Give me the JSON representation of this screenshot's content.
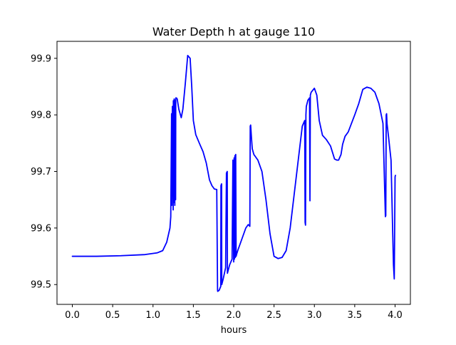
{
  "chart_data": {
    "type": "line",
    "title": "Water Depth h at gauge 110",
    "xlabel": "hours",
    "ylabel": "",
    "xlim": [
      -0.19,
      4.19
    ],
    "ylim": [
      99.465,
      99.93
    ],
    "x_ticks": [
      0.0,
      0.5,
      1.0,
      1.5,
      2.0,
      2.5,
      3.0,
      3.5,
      4.0
    ],
    "x_tick_labels": [
      "0.0",
      "0.5",
      "1.0",
      "1.5",
      "2.0",
      "2.5",
      "3.0",
      "3.5",
      "4.0"
    ],
    "y_ticks": [
      99.5,
      99.6,
      99.7,
      99.8,
      99.9
    ],
    "y_tick_labels": [
      "99.5",
      "99.6",
      "99.7",
      "99.8",
      "99.9"
    ],
    "grid": false,
    "legend": "none",
    "series": [
      {
        "color": "#0000ff",
        "x": [
          0.0,
          0.3,
          0.6,
          0.9,
          1.05,
          1.12,
          1.17,
          1.21,
          1.22,
          1.23,
          1.232,
          1.24,
          1.25,
          1.252,
          1.26,
          1.262,
          1.27,
          1.272,
          1.28,
          1.282,
          1.29,
          1.3,
          1.32,
          1.35,
          1.37,
          1.4,
          1.43,
          1.46,
          1.48,
          1.5,
          1.53,
          1.58,
          1.62,
          1.66,
          1.7,
          1.73,
          1.76,
          1.79,
          1.8,
          1.802,
          1.82,
          1.84,
          1.842,
          1.85,
          1.852,
          1.87,
          1.9,
          1.91,
          1.92,
          1.922,
          1.95,
          1.98,
          1.99,
          2.0,
          2.005,
          2.01,
          2.015,
          2.02,
          2.025,
          2.03,
          2.035,
          2.05,
          2.1,
          2.15,
          2.18,
          2.2,
          2.205,
          2.21,
          2.22,
          2.23,
          2.25,
          2.3,
          2.35,
          2.4,
          2.45,
          2.5,
          2.55,
          2.6,
          2.65,
          2.7,
          2.75,
          2.8,
          2.85,
          2.88,
          2.885,
          2.89,
          2.895,
          2.9,
          2.92,
          2.94,
          2.945,
          2.95,
          2.96,
          3.0,
          3.03,
          3.06,
          3.1,
          3.15,
          3.2,
          3.25,
          3.28,
          3.3,
          3.33,
          3.35,
          3.38,
          3.42,
          3.46,
          3.5,
          3.55,
          3.6,
          3.65,
          3.7,
          3.75,
          3.8,
          3.85,
          3.88,
          3.885,
          3.89,
          3.895,
          3.9,
          3.92,
          3.95,
          3.98,
          3.99,
          4.0,
          4.002,
          4.005
        ],
        "y": [
          99.55,
          99.55,
          99.551,
          99.553,
          99.556,
          99.56,
          99.575,
          99.6,
          99.62,
          99.802,
          99.64,
          99.815,
          99.632,
          99.825,
          99.645,
          99.828,
          99.64,
          99.826,
          99.65,
          99.83,
          99.83,
          99.828,
          99.81,
          99.795,
          99.81,
          99.855,
          99.905,
          99.9,
          99.85,
          99.79,
          99.765,
          99.748,
          99.735,
          99.715,
          99.685,
          99.675,
          99.669,
          99.668,
          99.49,
          99.488,
          99.49,
          99.497,
          99.675,
          99.678,
          99.5,
          99.51,
          99.53,
          99.697,
          99.7,
          99.52,
          99.535,
          99.545,
          99.72,
          99.54,
          99.724,
          99.545,
          99.728,
          99.548,
          99.73,
          99.55,
          99.553,
          99.56,
          99.58,
          99.6,
          99.606,
          99.603,
          99.78,
          99.782,
          99.76,
          99.74,
          99.73,
          99.72,
          99.7,
          99.65,
          99.59,
          99.55,
          99.546,
          99.548,
          99.56,
          99.6,
          99.66,
          99.72,
          99.78,
          99.79,
          99.61,
          99.605,
          99.8,
          99.815,
          99.826,
          99.83,
          99.648,
          99.835,
          99.84,
          99.847,
          99.835,
          99.79,
          99.764,
          99.756,
          99.745,
          99.722,
          99.72,
          99.72,
          99.73,
          99.748,
          99.762,
          99.77,
          99.785,
          99.8,
          99.82,
          99.845,
          99.849,
          99.847,
          99.84,
          99.82,
          99.785,
          99.62,
          99.622,
          99.8,
          99.802,
          99.785,
          99.76,
          99.72,
          99.535,
          99.51,
          99.69,
          99.692,
          99.693
        ]
      }
    ]
  }
}
